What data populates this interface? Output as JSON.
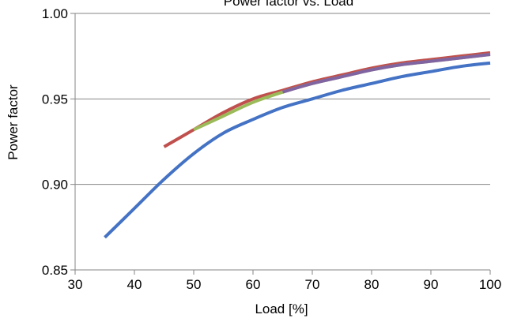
{
  "chart_data": {
    "type": "line",
    "title": "Power factor vs. Load",
    "xlabel": "Load [%]",
    "ylabel": "Power factor",
    "xlim": [
      30,
      100
    ],
    "ylim": [
      0.85,
      1.0
    ],
    "x_ticks": [
      "30",
      "40",
      "50",
      "60",
      "70",
      "80",
      "90",
      "100"
    ],
    "y_ticks": [
      "0.85",
      "0.90",
      "0.95",
      "1.00"
    ],
    "y_grid": true,
    "legend": "none",
    "series": [
      {
        "color": "#4472c4",
        "x": [
          35,
          40,
          45,
          50,
          55,
          60,
          65,
          70,
          75,
          80,
          85,
          90,
          95,
          100
        ],
        "y": [
          0.869,
          0.886,
          0.903,
          0.918,
          0.93,
          0.938,
          0.945,
          0.95,
          0.955,
          0.959,
          0.963,
          0.966,
          0.969,
          0.971
        ]
      },
      {
        "color": "#c0504d",
        "x": [
          45,
          50,
          55,
          60,
          65,
          70,
          75,
          80,
          85,
          90,
          95,
          100
        ],
        "y": [
          0.922,
          0.932,
          0.942,
          0.95,
          0.955,
          0.96,
          0.964,
          0.968,
          0.971,
          0.973,
          0.975,
          0.977
        ]
      },
      {
        "color": "#9bbb59",
        "x": [
          50,
          55,
          60,
          65,
          70,
          75,
          80,
          85,
          90,
          95,
          100
        ],
        "y": [
          0.932,
          0.94,
          0.948,
          0.954,
          0.959,
          0.963,
          0.967,
          0.97,
          0.972,
          0.974,
          0.976
        ]
      },
      {
        "color": "#8064a2",
        "x": [
          65,
          70,
          75,
          80,
          85,
          90,
          95,
          100
        ],
        "y": [
          0.954,
          0.959,
          0.963,
          0.967,
          0.97,
          0.972,
          0.974,
          0.976
        ]
      }
    ]
  }
}
